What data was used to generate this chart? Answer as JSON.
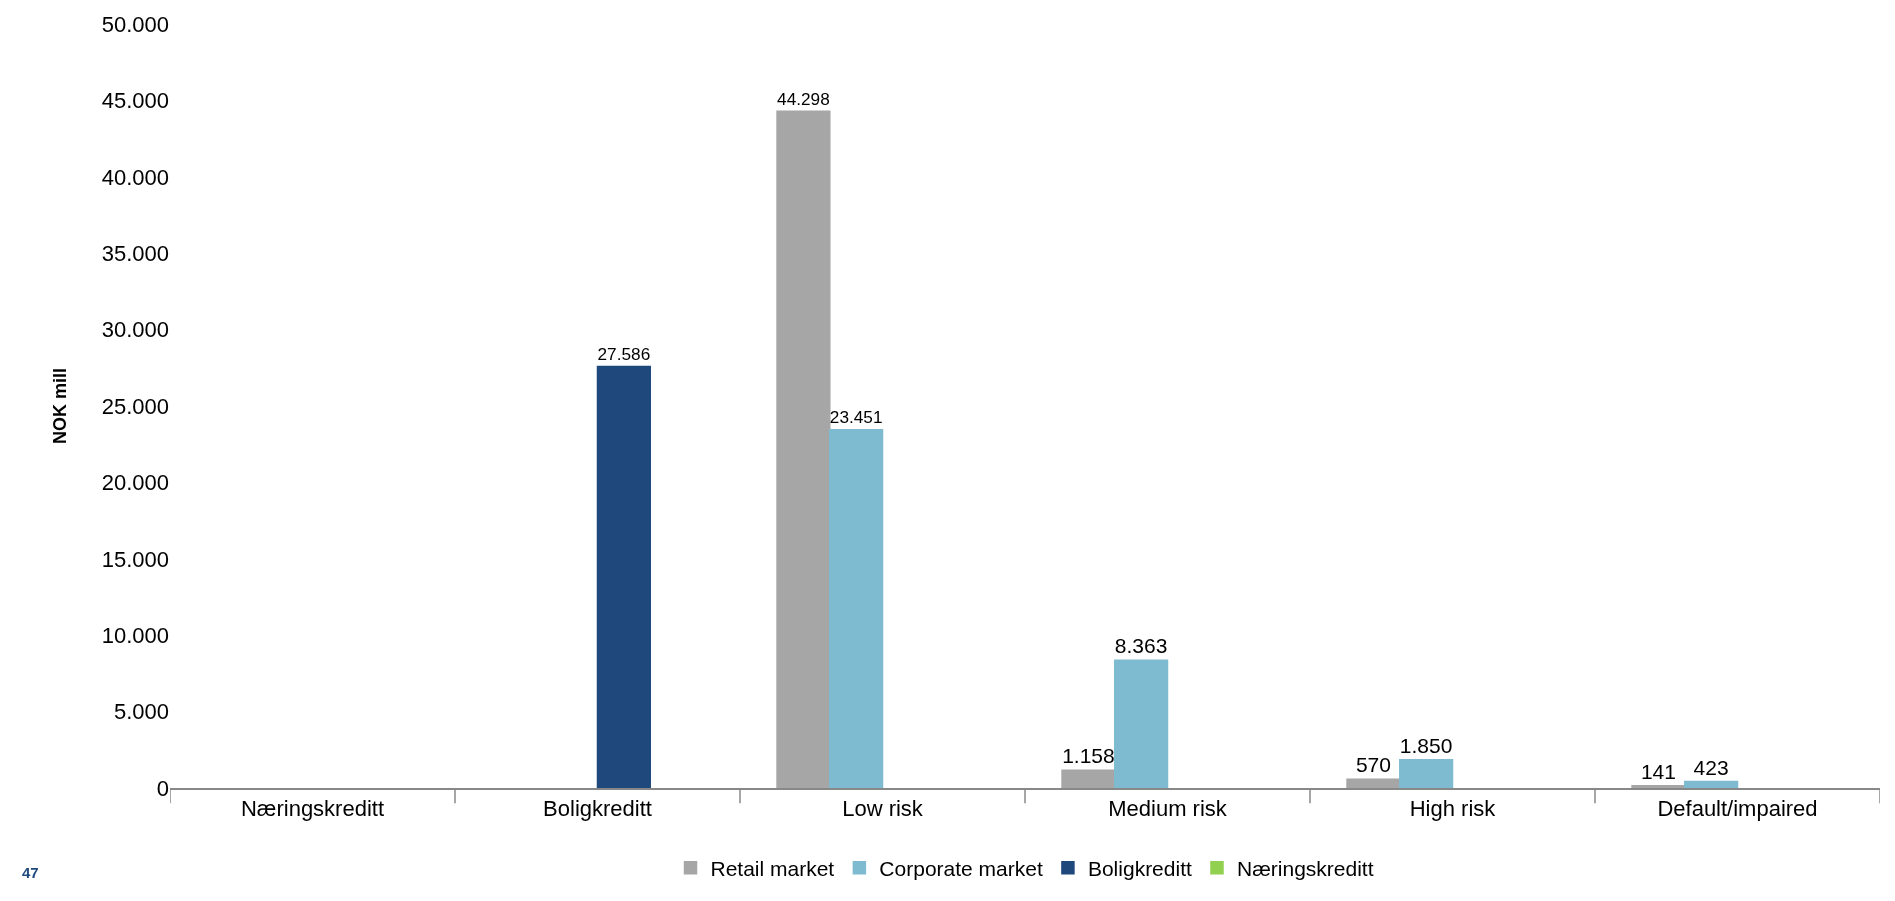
{
  "chart_data": {
    "type": "bar",
    "ylabel": "NOK mill",
    "categories": [
      "Næringskreditt",
      "Boligkreditt",
      "Low risk",
      "Medium risk",
      "High risk",
      "Default/impaired"
    ],
    "series": [
      {
        "name": "Retail market",
        "color": "#a6a6a6",
        "values": [
          null,
          null,
          44298,
          1158,
          570,
          141
        ],
        "value_labels": [
          null,
          null,
          "44.298",
          "1.158",
          "570",
          "141"
        ]
      },
      {
        "name": "Corporate market",
        "color": "#7fbbd0",
        "values": [
          null,
          null,
          23451,
          8363,
          1850,
          423
        ],
        "value_labels": [
          null,
          null,
          "23.451",
          "8.363",
          "1.850",
          "423"
        ]
      },
      {
        "name": "Boligkreditt",
        "color": "#1f497d",
        "values": [
          null,
          27586,
          null,
          null,
          null,
          null
        ],
        "value_labels": [
          null,
          "27.586",
          null,
          null,
          null,
          null
        ]
      },
      {
        "name": "Næringskreditt",
        "color": "#92d050",
        "values": [
          null,
          null,
          null,
          null,
          null,
          null
        ]
      }
    ],
    "ylim": [
      0,
      50000
    ],
    "yticks": [
      0,
      {
        "value": 5000,
        "label": "5.000"
      },
      {
        "value": 10000,
        "label": "10.000"
      },
      {
        "value": 15000,
        "label": "15.000"
      },
      {
        "value": 20000,
        "label": "20.000"
      },
      {
        "value": 25000,
        "label": "25.000"
      },
      {
        "value": 30000,
        "label": "30.000"
      },
      {
        "value": 35000,
        "label": "35.000"
      },
      {
        "value": 40000,
        "label": "40.000"
      },
      {
        "value": 45000,
        "label": "45.000"
      },
      {
        "value": 50000,
        "label": "50.000"
      }
    ],
    "grid": false,
    "legend": "bottom",
    "annotations": [
      "47"
    ]
  }
}
